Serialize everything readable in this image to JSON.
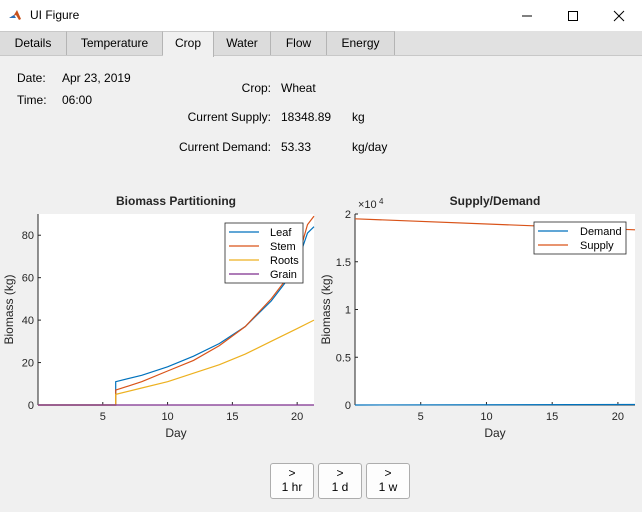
{
  "window": {
    "title": "UI Figure"
  },
  "tabs": [
    {
      "label": "Details"
    },
    {
      "label": "Temperature"
    },
    {
      "label": "Crop"
    },
    {
      "label": "Water"
    },
    {
      "label": "Flow"
    },
    {
      "label": "Energy"
    }
  ],
  "active_tab": "Crop",
  "info": {
    "date_label": "Date:",
    "date_value": "Apr 23, 2019",
    "time_label": "Time:",
    "time_value": "06:00",
    "crop_label": "Crop:",
    "crop_value": "Wheat",
    "supply_label": "Current Supply:",
    "supply_value": "18348.89",
    "supply_unit": "kg",
    "demand_label": "Current Demand:",
    "demand_value": "53.33",
    "demand_unit": "kg/day"
  },
  "buttons": {
    "hour": {
      "arrow": ">",
      "label": "1 hr"
    },
    "day": {
      "arrow": ">",
      "label": "1 d"
    },
    "week": {
      "arrow": ">",
      "label": "1 w"
    }
  },
  "colors": {
    "blue": "#0072bd",
    "orange": "#d95319",
    "yellow": "#edb120",
    "purple": "#7e2f8e"
  },
  "chart_data": [
    {
      "type": "line",
      "title": "Biomass Partitioning",
      "xlabel": "Day",
      "ylabel": "Biomass (kg)",
      "xlim": [
        0,
        21.3
      ],
      "ylim": [
        0,
        90
      ],
      "xticks": [
        5,
        10,
        15,
        20
      ],
      "yticks": [
        0,
        20,
        40,
        60,
        80
      ],
      "grid": false,
      "legend": "top-right",
      "series": [
        {
          "name": "Leaf",
          "color": "#0072bd",
          "points": [
            [
              0,
              0
            ],
            [
              6,
              0
            ],
            [
              6,
              11
            ],
            [
              8,
              14
            ],
            [
              10,
              18
            ],
            [
              12,
              23
            ],
            [
              14,
              29
            ],
            [
              16,
              37
            ],
            [
              18,
              49
            ],
            [
              19,
              57
            ],
            [
              20,
              67
            ],
            [
              20.8,
              81
            ],
            [
              21.3,
              84
            ]
          ]
        },
        {
          "name": "Stem",
          "color": "#d95319",
          "points": [
            [
              0,
              0
            ],
            [
              6,
              0
            ],
            [
              6,
              7
            ],
            [
              8,
              11
            ],
            [
              10,
              16
            ],
            [
              12,
              21
            ],
            [
              14,
              28
            ],
            [
              16,
              37
            ],
            [
              18,
              50
            ],
            [
              19,
              58
            ],
            [
              20,
              68
            ],
            [
              20.8,
              85
            ],
            [
              21.3,
              89
            ]
          ]
        },
        {
          "name": "Roots",
          "color": "#edb120",
          "points": [
            [
              0,
              0
            ],
            [
              6,
              0
            ],
            [
              6,
              5
            ],
            [
              8,
              8
            ],
            [
              10,
              11
            ],
            [
              12,
              15
            ],
            [
              14,
              19
            ],
            [
              16,
              24
            ],
            [
              18,
              30
            ],
            [
              20,
              36
            ],
            [
              21.3,
              40
            ]
          ]
        },
        {
          "name": "Grain",
          "color": "#7e2f8e",
          "points": [
            [
              0,
              0
            ],
            [
              21.3,
              0
            ]
          ]
        }
      ]
    },
    {
      "type": "line",
      "title": "Supply/Demand",
      "xlabel": "Day",
      "ylabel": "Biomass (kg)",
      "exponent": "×10",
      "exponent_power": "4",
      "xlim": [
        0,
        21.3
      ],
      "ylim": [
        0,
        2
      ],
      "xticks": [
        5,
        10,
        15,
        20
      ],
      "yticks": [
        0,
        0.5,
        1,
        1.5,
        2
      ],
      "ytick_labels": [
        "0",
        "0.5",
        "1",
        "1.5",
        "2"
      ],
      "grid": false,
      "legend": "top-right",
      "series": [
        {
          "name": "Demand",
          "color": "#0072bd",
          "points": [
            [
              0,
              0.0005
            ],
            [
              21.3,
              0.005
            ]
          ]
        },
        {
          "name": "Supply",
          "color": "#d95319",
          "points": [
            [
              0,
              1.95
            ],
            [
              21.3,
              1.835
            ]
          ]
        }
      ]
    }
  ]
}
